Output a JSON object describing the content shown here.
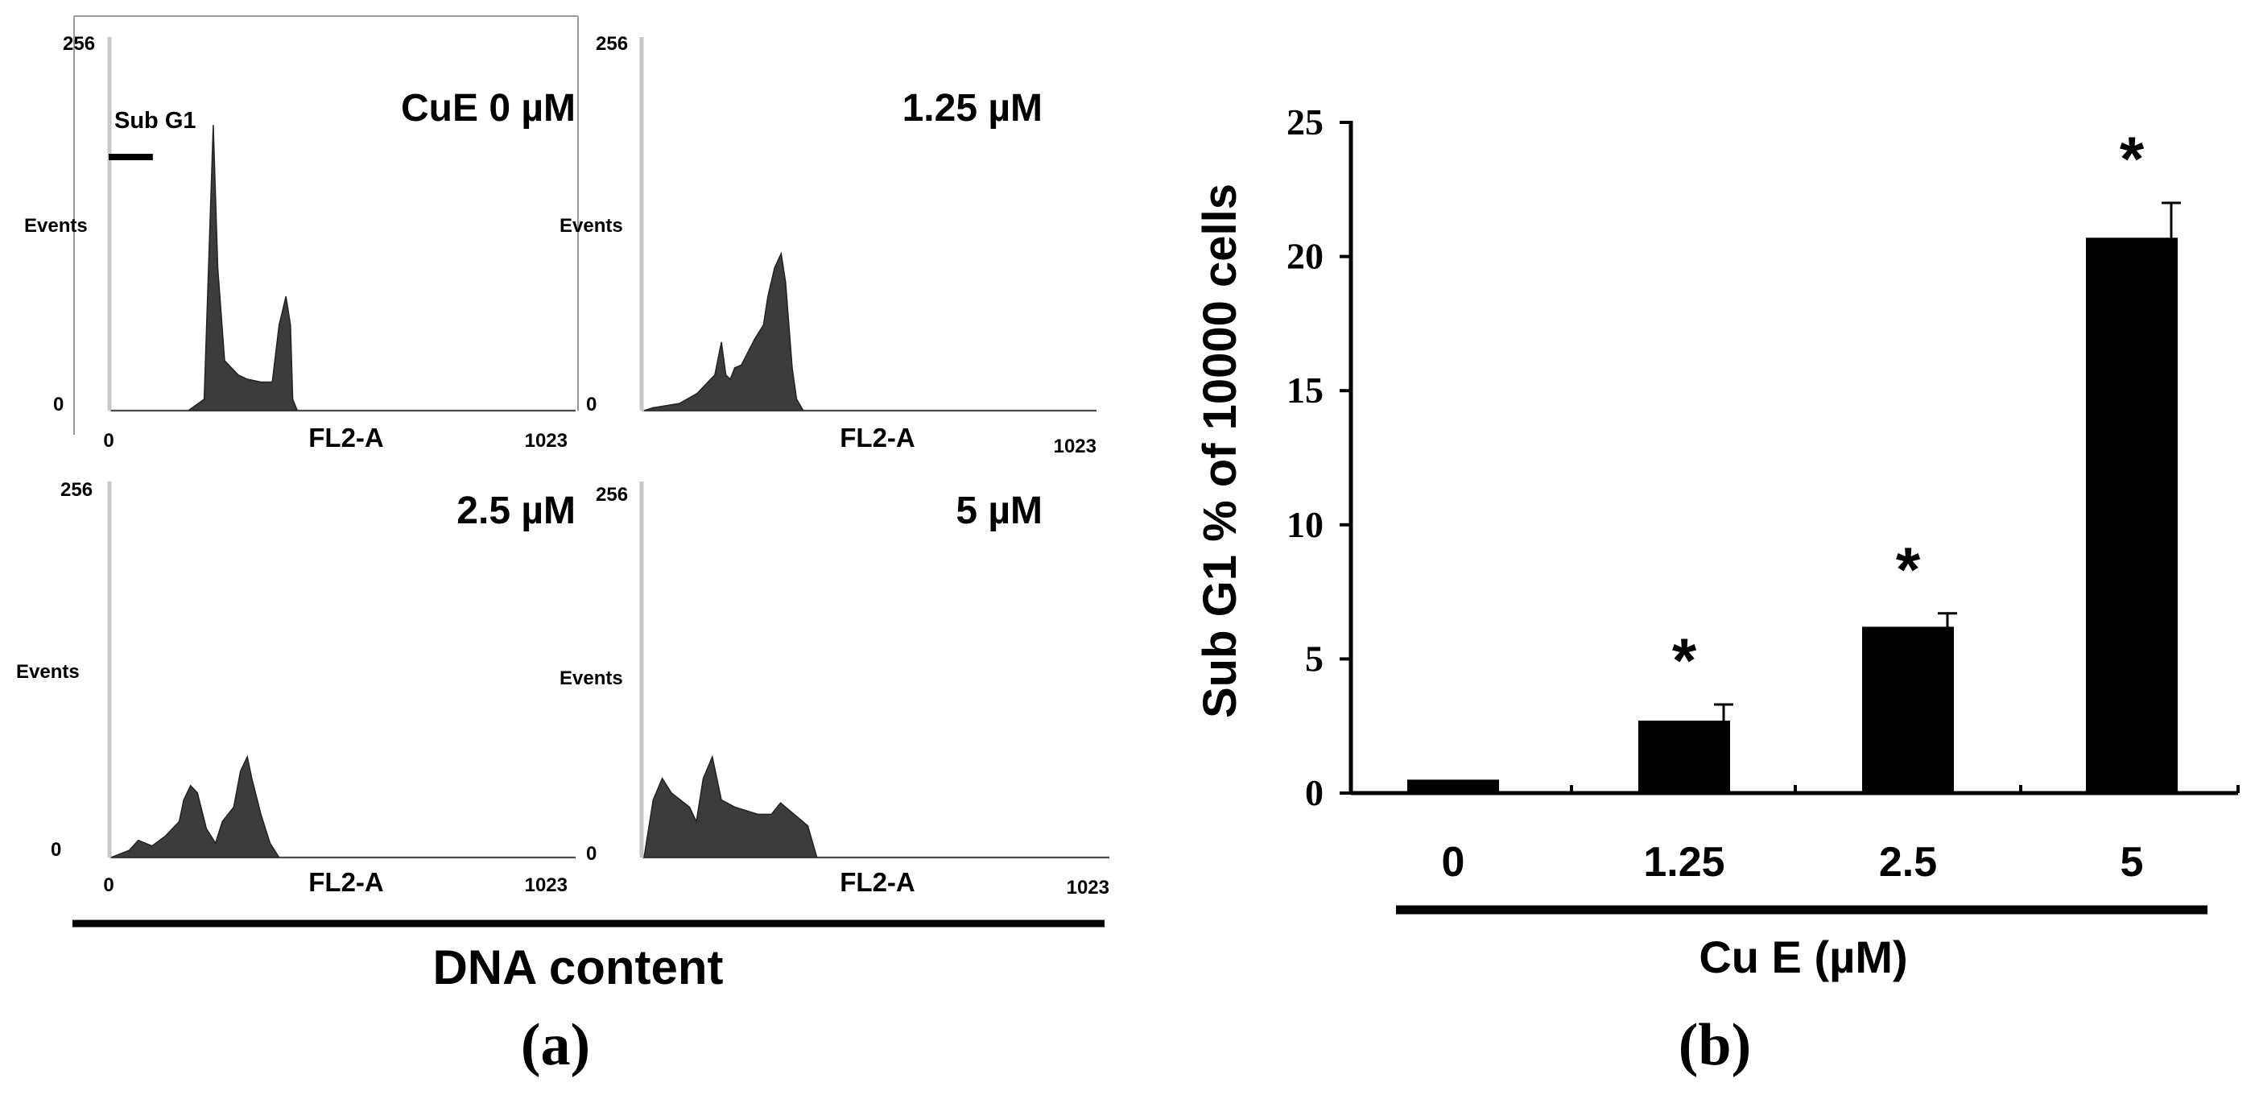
{
  "panel_a": {
    "label": "(a)",
    "x_title": "DNA content",
    "histograms": [
      {
        "condition": "CuE 0 µM",
        "y_max_label": "256",
        "y_min_label": "0",
        "y_label": "Events",
        "x_label": "FL2-A",
        "x_min_label": "0",
        "x_max_label": "1023",
        "gate_label": "Sub G1"
      },
      {
        "condition": "1.25 µM",
        "y_max_label": "256",
        "y_min_label": "0",
        "y_label": "Events",
        "x_label": "FL2-A",
        "x_max_label": "1023"
      },
      {
        "condition": "2.5 µM",
        "y_max_label": "256",
        "y_min_label": "0",
        "y_label": "Events",
        "x_label": "FL2-A",
        "x_min_label": "0",
        "x_max_label": "1023"
      },
      {
        "condition": "5 µM",
        "y_max_label": "256",
        "y_min_label": "0",
        "y_label": "Events",
        "x_label": "FL2-A",
        "x_max_label": "1023"
      }
    ]
  },
  "panel_b": {
    "label": "(b)",
    "x_title": "Cu E (µM)",
    "y_title": "Sub G1 % of 10000 cells"
  },
  "chart_data": [
    {
      "type": "area",
      "layout": "2x2 small multiples of DNA-content histograms",
      "xlim": [
        0,
        1023
      ],
      "ylim": [
        0,
        256
      ],
      "series": [
        {
          "name": "CuE 0 µM",
          "x": [
            0,
            170,
            205,
            225,
            235,
            250,
            280,
            300,
            330,
            355,
            370,
            385,
            395,
            400,
            410,
            430,
            1023
          ],
          "y": [
            0,
            0,
            8,
            200,
            100,
            35,
            25,
            22,
            20,
            20,
            60,
            80,
            60,
            8,
            0,
            0,
            0
          ]
        },
        {
          "name": "1.25 µM",
          "x": [
            0,
            20,
            80,
            120,
            160,
            175,
            185,
            195,
            205,
            220,
            250,
            270,
            280,
            295,
            310,
            320,
            335,
            345,
            360,
            1023
          ],
          "y": [
            0,
            2,
            5,
            12,
            25,
            48,
            25,
            22,
            30,
            32,
            50,
            60,
            80,
            100,
            110,
            90,
            30,
            8,
            0,
            0
          ]
        },
        {
          "name": "2.5 µM",
          "x": [
            0,
            40,
            60,
            90,
            120,
            150,
            160,
            175,
            190,
            210,
            230,
            245,
            270,
            285,
            300,
            310,
            330,
            350,
            370,
            1023
          ],
          "y": [
            0,
            5,
            12,
            8,
            15,
            25,
            40,
            50,
            45,
            20,
            10,
            25,
            35,
            60,
            70,
            55,
            30,
            10,
            0,
            0
          ]
        },
        {
          "name": "5 µM",
          "x": [
            0,
            20,
            40,
            60,
            80,
            100,
            115,
            130,
            150,
            170,
            200,
            250,
            280,
            300,
            330,
            360,
            380,
            1023
          ],
          "y": [
            0,
            40,
            55,
            45,
            40,
            35,
            25,
            55,
            70,
            40,
            35,
            30,
            30,
            38,
            30,
            22,
            0,
            0
          ]
        }
      ],
      "annotations": [
        {
          "text": "Sub G1",
          "series": "CuE 0 µM",
          "x_range": [
            0,
            170
          ]
        }
      ]
    },
    {
      "type": "bar",
      "categories": [
        "0",
        "1.25",
        "2.5",
        "5"
      ],
      "values": [
        0.5,
        2.7,
        6.2,
        20.7
      ],
      "errors": [
        0,
        0.6,
        0.5,
        1.3
      ],
      "significance": [
        "",
        "*",
        "*",
        "*"
      ],
      "xlabel": "Cu E (µM)",
      "ylabel": "Sub G1 % of 10000 cells",
      "ylim": [
        0,
        25
      ],
      "yticks": [
        0,
        5,
        10,
        15,
        20,
        25
      ],
      "grid": false,
      "bar_color": "#000000"
    }
  ],
  "colors": {
    "fill": "#3c3c3c",
    "ink": "#000000",
    "axis_light": "#c8c8c8"
  }
}
